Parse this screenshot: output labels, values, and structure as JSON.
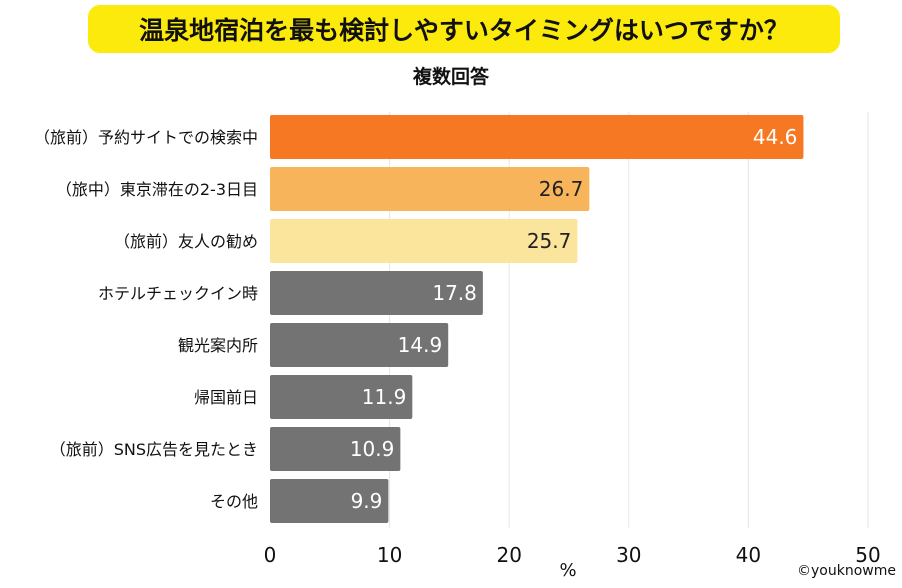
{
  "chart_data": {
    "type": "bar",
    "orientation": "horizontal",
    "title": "温泉地宿泊を最も検討しやすいタイミングはいつですか？",
    "subtitle": "複数回答",
    "categories": [
      "（旅前）予約サイトでの検索中",
      "（旅中）東京滞在の2-3日目",
      "（旅前）友人の勧め",
      "ホテルチェックイン時",
      "観光案内所",
      "帰国前日",
      "（旅前）SNS広告を見たとき",
      "その他"
    ],
    "values": [
      44.6,
      26.7,
      25.7,
      17.8,
      14.9,
      11.9,
      10.9,
      9.9
    ],
    "value_labels": [
      "44.6",
      "26.7",
      "25.7",
      "17.8",
      "14.9",
      "11.9",
      "10.9",
      "9.9"
    ],
    "colors": [
      "#F77822",
      "#F7B45A",
      "#FBE49C",
      "#737373",
      "#737373",
      "#737373",
      "#737373",
      "#737373"
    ],
    "label_colors": [
      "#ffffff",
      "#222222",
      "#222222",
      "#ffffff",
      "#ffffff",
      "#ffffff",
      "#ffffff",
      "#ffffff"
    ],
    "xlabel": "%",
    "xlim": [
      0,
      50
    ],
    "xticks": [
      "0",
      "10",
      "20",
      "30",
      "40",
      "50"
    ],
    "grid": true
  },
  "credit": "©youknowme"
}
